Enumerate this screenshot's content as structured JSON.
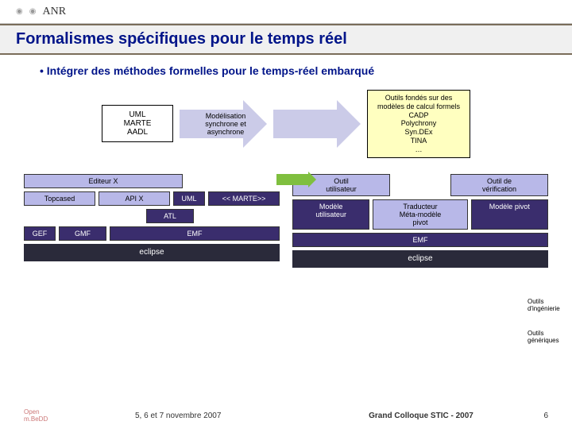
{
  "header": {
    "anr": "ANR"
  },
  "title": "Formalismes spécifiques pour le temps réel",
  "bullet": "• Intégrer des méthodes formelles pour le temps-réel embarqué",
  "flow": {
    "left_box": "UML\nMARTE\nAADL",
    "arrow1": "Modélisation\nsynchrone et\nasynchrone",
    "right_box": "Outils fondés sur des\nmodèles de calcul formels\nCADP\nPolychrony\nSyn.DEx\nTINA\n…"
  },
  "left_stack": {
    "editor": "Editeur X",
    "row2": [
      "Topcased",
      "API X",
      "UML",
      "<< MARTE>>"
    ],
    "atl": "ATL",
    "row3": [
      "GEF",
      "GMF",
      "EMF"
    ],
    "eclipse": "eclipse"
  },
  "right_stack": {
    "row1": [
      "Outil\nutilisateur",
      "Outil de\nvérification"
    ],
    "row2": [
      "Modèle\nutilisateur",
      "Traducteur\nMéta-modèle\npivot",
      "Modèle pivot"
    ],
    "emf": "EMF",
    "eclipse": "eclipse"
  },
  "annotations": {
    "a1": "Outils\nd'ingénierie",
    "a2": "Outils\ngénériques"
  },
  "footer": {
    "logo": "Open\nm.BeDD",
    "date": "5, 6 et 7 novembre 2007",
    "center": "Grand Colloque STIC - 2007",
    "page": "6"
  },
  "colors": {
    "title": "#001489",
    "chip_light": "#b8b8e8",
    "chip_dark": "#3a2d6d",
    "yellow_box": "#ffffc0",
    "arrow": "#cbcbe8",
    "green": "#7fbf3f"
  }
}
